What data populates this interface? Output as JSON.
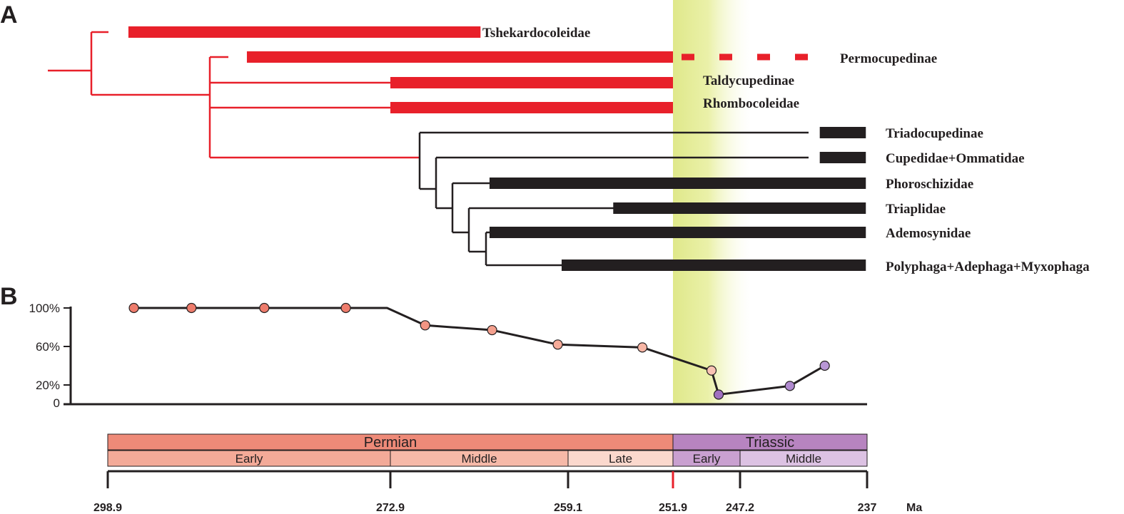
{
  "panels": {
    "a": "A",
    "b": "B"
  },
  "colors": {
    "permian_lineage": "#e8202a",
    "later_lineage": "#231f20",
    "highlight": "#dfe88a",
    "permian": "#ee8a78",
    "early_permian": "#f3aa98",
    "middle_permian": "#f6b9a8",
    "late_permian": "#fbd8cd",
    "triassic": "#b784c0",
    "early_triassic": "#c9a0d0",
    "middle_triassic": "#dcc2e3",
    "point_permian": "#ee7c6c",
    "point_late": "#f9c3b4",
    "point_triassic": "#a97fc8"
  },
  "timescale": {
    "unit": "Ma",
    "ticks": [
      {
        "value": 298.9,
        "label": "298.9"
      },
      {
        "value": 272.9,
        "label": "272.9"
      },
      {
        "value": 259.1,
        "label": "259.1"
      },
      {
        "value": 251.9,
        "label": "251.9"
      },
      {
        "value": 247.2,
        "label": "247.2"
      },
      {
        "value": 237,
        "label": "237"
      }
    ],
    "periods": [
      {
        "name": "Permian",
        "start": 298.9,
        "end": 251.9,
        "color": "#ee8a78"
      },
      {
        "name": "Triassic",
        "start": 251.9,
        "end": 237,
        "color": "#b784c0"
      }
    ],
    "epochs": [
      {
        "name": "Early",
        "start": 298.9,
        "end": 272.9,
        "color": "#f3aa98"
      },
      {
        "name": "Middle",
        "start": 272.9,
        "end": 259.1,
        "color": "#f6b9a8"
      },
      {
        "name": "Late",
        "start": 259.1,
        "end": 251.9,
        "color": "#fbd8cd"
      },
      {
        "name": "Early",
        "start": 251.9,
        "end": 247.2,
        "color": "#c9a0d0"
      },
      {
        "name": "Middle",
        "start": 247.2,
        "end": 237,
        "color": "#dcc2e3"
      }
    ],
    "extinction_boundary": 251.9,
    "highlight_interval": [
      251.9,
      246.3
    ]
  },
  "chart_data": [
    {
      "type": "phylogeny",
      "title": "",
      "x_unit": "Ma",
      "taxa": [
        {
          "name": "Tshekardocoleidae",
          "range": [
            297.0,
            265.9
          ],
          "group": "permian"
        },
        {
          "name": "Permocupedinae",
          "range": [
            286.1,
            251.9
          ],
          "extension": [
            251.9,
            240.2
          ],
          "group": "permian"
        },
        {
          "name": "Taldycupedinae",
          "range": [
            272.9,
            251.9
          ],
          "group": "permian"
        },
        {
          "name": "Rhombocoleidae",
          "range": [
            272.9,
            251.9
          ],
          "group": "permian"
        },
        {
          "name": "Triadocupedinae",
          "range": [
            240.8,
            237.1
          ],
          "group": "later"
        },
        {
          "name": "Cupedidae+Ommatidae",
          "range": [
            240.8,
            237.1
          ],
          "group": "later"
        },
        {
          "name": "Phoroschizidae",
          "range": [
            265.2,
            237.1
          ],
          "group": "later"
        },
        {
          "name": "Triaplidae",
          "range": [
            256.0,
            237.1
          ],
          "group": "later"
        },
        {
          "name": "Ademosynidae",
          "range": [
            265.2,
            237.1
          ],
          "group": "later"
        },
        {
          "name": "Polyphaga+Adephaga+Myxophaga",
          "range": [
            259.6,
            237.1
          ],
          "group": "later"
        }
      ]
    },
    {
      "type": "line",
      "title": "",
      "xlabel": "",
      "ylabel": "",
      "x_unit": "Ma",
      "ylim": [
        0,
        100
      ],
      "yticks": [
        {
          "value": 0,
          "label": "0"
        },
        {
          "value": 20,
          "label": "20%"
        },
        {
          "value": 60,
          "label": "60%"
        },
        {
          "value": 100,
          "label": "100%"
        }
      ],
      "series": [
        {
          "points": [
            {
              "x": 296.5,
              "y": 100,
              "color": "#ee7c6c"
            },
            {
              "x": 291.2,
              "y": 100,
              "color": "#ee7c6c"
            },
            {
              "x": 284.5,
              "y": 100,
              "color": "#ee7c6c"
            },
            {
              "x": 277.0,
              "y": 100,
              "color": "#ee7c6c"
            },
            {
              "x": 273.2,
              "y": 100,
              "vertex_only": true
            },
            {
              "x": 270.2,
              "y": 82,
              "color": "#f29583"
            },
            {
              "x": 265.0,
              "y": 77,
              "color": "#f4a08e"
            },
            {
              "x": 259.9,
              "y": 62,
              "color": "#f6ab99"
            },
            {
              "x": 254.0,
              "y": 59,
              "color": "#f8b6a5"
            },
            {
              "x": 249.2,
              "y": 35,
              "color": "#f9c3b4"
            },
            {
              "x": 248.7,
              "y": 10,
              "color": "#a070c0"
            },
            {
              "x": 243.2,
              "y": 19,
              "color": "#b08ad0"
            },
            {
              "x": 240.4,
              "y": 40,
              "color": "#b896d6"
            }
          ]
        }
      ]
    }
  ]
}
